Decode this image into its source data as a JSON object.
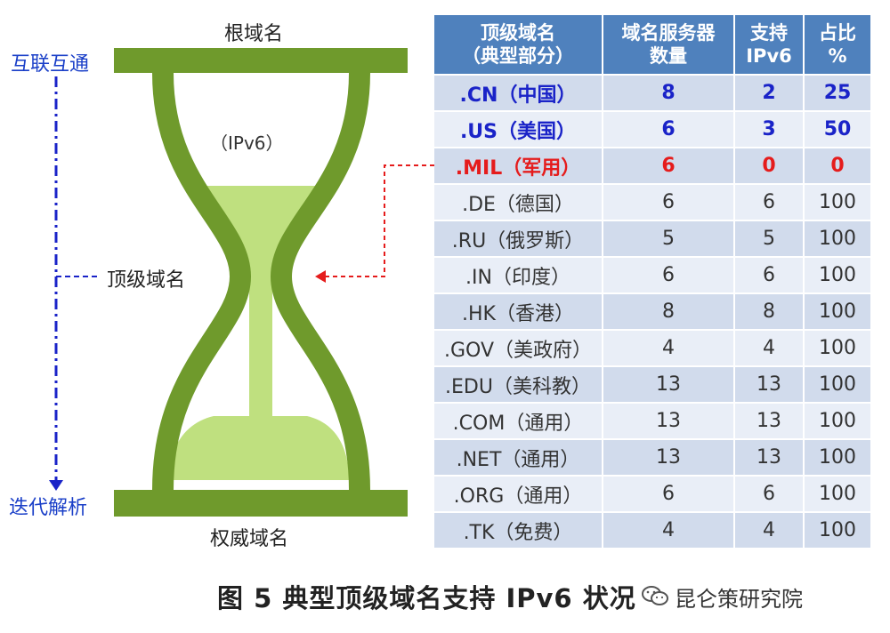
{
  "hourglass": {
    "top_label": "根域名",
    "bottom_label": "权威域名",
    "middle_label": "顶级域名",
    "ipv6_label": "（IPv6）"
  },
  "side_axis": {
    "top_label": "互联互通",
    "bottom_label": "迭代解析"
  },
  "table": {
    "headers": [
      "顶级域名\n（典型部分）",
      "域名服务器\n数量",
      "支持\nIPv6",
      "占比\n%"
    ],
    "rows": [
      {
        "domain": ".CN（中国）",
        "servers": "8",
        "ipv6": "2",
        "pct": "25",
        "highlight": "blue"
      },
      {
        "domain": ".US（美国）",
        "servers": "6",
        "ipv6": "3",
        "pct": "50",
        "highlight": "blue"
      },
      {
        "domain": ".MIL（军用）",
        "servers": "6",
        "ipv6": "0",
        "pct": "0",
        "highlight": "red"
      },
      {
        "domain": ".DE（德国）",
        "servers": "6",
        "ipv6": "6",
        "pct": "100",
        "highlight": ""
      },
      {
        "domain": ".RU（俄罗斯）",
        "servers": "5",
        "ipv6": "5",
        "pct": "100",
        "highlight": ""
      },
      {
        "domain": ".IN（印度）",
        "servers": "6",
        "ipv6": "6",
        "pct": "100",
        "highlight": ""
      },
      {
        "domain": ".HK（香港）",
        "servers": "8",
        "ipv6": "8",
        "pct": "100",
        "highlight": ""
      },
      {
        "domain": ".GOV（美政府）",
        "servers": "4",
        "ipv6": "4",
        "pct": "100",
        "highlight": ""
      },
      {
        "domain": ".EDU（美科教）",
        "servers": "13",
        "ipv6": "13",
        "pct": "100",
        "highlight": ""
      },
      {
        "domain": ".COM（通用）",
        "servers": "13",
        "ipv6": "13",
        "pct": "100",
        "highlight": ""
      },
      {
        "domain": ".NET（通用）",
        "servers": "13",
        "ipv6": "13",
        "pct": "100",
        "highlight": ""
      },
      {
        "domain": ".ORG（通用）",
        "servers": "6",
        "ipv6": "6",
        "pct": "100",
        "highlight": ""
      },
      {
        "domain": ".TK（免费）",
        "servers": "4",
        "ipv6": "4",
        "pct": "100",
        "highlight": ""
      }
    ]
  },
  "caption": "图 5  典型顶级域名支持 IPv6 状况",
  "watermark": "昆仑策研究院",
  "colors": {
    "hourglass_dark": "#6f9a2c",
    "hourglass_light": "#bfe07f",
    "header_blue": "#4f81bd",
    "row_odd": "#d1dbec",
    "row_even": "#e9eef7",
    "accent_blue": "#1a23c8",
    "accent_red": "#e51c1c"
  }
}
